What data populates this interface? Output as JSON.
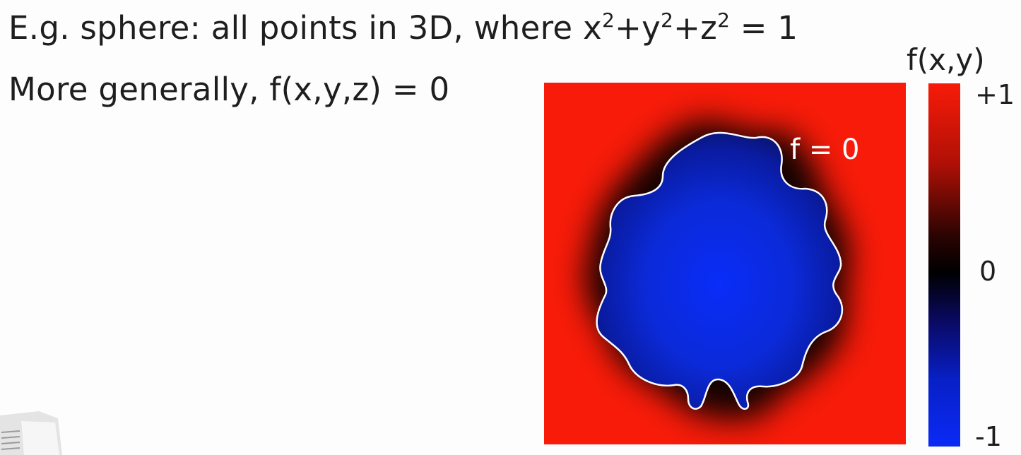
{
  "slide": {
    "line1_main": "E.g. sphere: all points in 3D, where x",
    "sup": "2",
    "plus_y": "+y",
    "plus_z": "+z",
    "eq_one": " = 1",
    "line2": "More generally, f(x,y,z) = 0"
  },
  "figure": {
    "contour_label": "f = 0",
    "colorbar": {
      "title": "f(x,y)",
      "tick_max": "+1",
      "tick_mid": "0",
      "tick_min": "-1",
      "colors": {
        "positive": "#f81b09",
        "zero": "#000000",
        "negative": "#0a2af5"
      }
    }
  }
}
